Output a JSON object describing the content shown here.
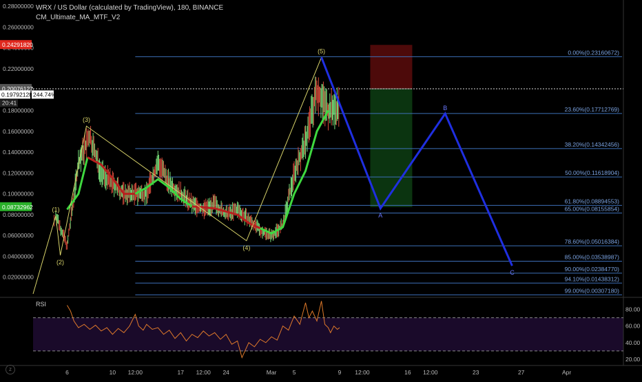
{
  "header": {
    "title": "WRX / US Dollar (calculated by TradingView), 180, BINANCE",
    "indicator": "CM_Ultimate_MA_MTF_V2"
  },
  "colors": {
    "background": "#000000",
    "fib_line": "#3d6fb8",
    "fib_label": "#7aa2e0",
    "wave_line": "#d8d36a",
    "projection": "#1f2fe0",
    "ma_green": "#3fd83f",
    "ma_red": "#b8201e",
    "candle_up": "#7ae07a",
    "candle_down": "#d24a3a",
    "rsi_line": "#e07a2a",
    "rsi_band": "#1a0a2a",
    "price_red": "#e0281e",
    "price_green": "#2ab02a",
    "sl_zone": "#5a0c0c",
    "tp_zone": "#0c3a12"
  },
  "chart_data": {
    "type": "candlestick",
    "price_axis": {
      "ylim": [
        0.002,
        0.286
      ],
      "ticks": [
        "0.28000000",
        "0.26000000",
        "0.24000000",
        "0.22000000",
        "0.20000000",
        "0.18000000",
        "0.16000000",
        "0.14000000",
        "0.12000000",
        "0.10000000",
        "0.08000000",
        "0.06000000",
        "0.04000000",
        "0.02000000"
      ],
      "tick_values": [
        0.28,
        0.26,
        0.24,
        0.22,
        0.2,
        0.18,
        0.16,
        0.14,
        0.12,
        0.1,
        0.08,
        0.06,
        0.04,
        0.02
      ],
      "badges": [
        {
          "text": "0.24291820",
          "value": 0.2429182,
          "color": "#e0281e"
        },
        {
          "text": "0.20076127",
          "value": 0.20076127,
          "color": "#555555"
        },
        {
          "text": "0.08732962",
          "value": 0.08732962,
          "color": "#2ab02a"
        }
      ],
      "crosshair": {
        "price": "0.19792128",
        "pct": "244.74%",
        "time": "20:41",
        "value": 0.19792128
      }
    },
    "time_axis": {
      "labels": [
        "6",
        "10",
        "12:00",
        "17",
        "12:00",
        "24",
        "Mar",
        "5",
        "9",
        "12:00",
        "16",
        "12:00",
        "23",
        "27",
        "Apr"
      ],
      "label_positions": [
        0,
        4,
        6,
        10,
        12,
        14,
        18,
        20,
        24,
        26,
        30,
        32,
        36,
        40,
        44
      ]
    },
    "time_range": [
      -3,
      49
    ],
    "price_path": [
      [
        -3,
        0.004
      ],
      [
        -1,
        0.08
      ],
      [
        0,
        0.05
      ],
      [
        1,
        0.13
      ],
      [
        2,
        0.155
      ],
      [
        3,
        0.12
      ],
      [
        4,
        0.11
      ],
      [
        5,
        0.1
      ],
      [
        6,
        0.1
      ],
      [
        7,
        0.1
      ],
      [
        8,
        0.13
      ],
      [
        9,
        0.11
      ],
      [
        10,
        0.1
      ],
      [
        11,
        0.09
      ],
      [
        12,
        0.085
      ],
      [
        13,
        0.09
      ],
      [
        14,
        0.08
      ],
      [
        15,
        0.085
      ],
      [
        16,
        0.075
      ],
      [
        17,
        0.065
      ],
      [
        18,
        0.06
      ],
      [
        19,
        0.07
      ],
      [
        20,
        0.12
      ],
      [
        21,
        0.15
      ],
      [
        22,
        0.2
      ],
      [
        23,
        0.18
      ],
      [
        24,
        0.185
      ]
    ],
    "ma_segments": [
      {
        "color": "#3fd83f",
        "points": [
          [
            0,
            0.085
          ],
          [
            1,
            0.1
          ],
          [
            1.8,
            0.135
          ]
        ]
      },
      {
        "color": "#b8201e",
        "points": [
          [
            1.8,
            0.135
          ],
          [
            3,
            0.128
          ],
          [
            4,
            0.115
          ],
          [
            5,
            0.1
          ],
          [
            6,
            0.1
          ]
        ]
      },
      {
        "color": "#3fd83f",
        "points": [
          [
            6,
            0.1
          ],
          [
            7,
            0.106
          ],
          [
            8,
            0.114
          ],
          [
            9,
            0.106
          ],
          [
            10,
            0.095
          ],
          [
            11,
            0.088
          ]
        ]
      },
      {
        "color": "#b8201e",
        "points": [
          [
            11,
            0.088
          ],
          [
            13,
            0.086
          ],
          [
            15,
            0.08
          ],
          [
            16,
            0.072
          ],
          [
            17,
            0.067
          ]
        ]
      },
      {
        "color": "#3fd83f",
        "points": [
          [
            17,
            0.067
          ],
          [
            18,
            0.062
          ],
          [
            19,
            0.068
          ],
          [
            20,
            0.1
          ],
          [
            21,
            0.122
          ],
          [
            22,
            0.16
          ],
          [
            23,
            0.18
          ]
        ]
      }
    ],
    "elliott_waves": [
      {
        "label": "(1)",
        "t": -1,
        "p": 0.079,
        "pos": "above"
      },
      {
        "label": "(2)",
        "t": -0.6,
        "p": 0.041,
        "pos": "below"
      },
      {
        "label": "(3)",
        "t": 1.7,
        "p": 0.165,
        "pos": "above"
      },
      {
        "label": "(4)",
        "t": 15.8,
        "p": 0.055,
        "pos": "below"
      },
      {
        "label": "(5)",
        "t": 22.4,
        "p": 0.231,
        "pos": "above"
      }
    ],
    "wave_line": [
      [
        -3,
        0.004
      ],
      [
        -1,
        0.079
      ],
      [
        -0.6,
        0.041
      ],
      [
        1.7,
        0.165
      ],
      [
        15.8,
        0.055
      ],
      [
        22.4,
        0.231
      ]
    ],
    "fib_levels": [
      {
        "label": "0.00%(0.23160672)",
        "value": 0.23160672
      },
      {
        "label": "23.60%(0.17712769)",
        "value": 0.17712769
      },
      {
        "label": "38.20%(0.14342456)",
        "value": 0.14342456
      },
      {
        "label": "50.00%(0.11618904)",
        "value": 0.11618904
      },
      {
        "label": "61.80%(0.08894553)",
        "value": 0.08894553
      },
      {
        "label": "65.00%(0.08155854)",
        "value": 0.08155854
      },
      {
        "label": "78.60%(0.05016384)",
        "value": 0.05016384
      },
      {
        "label": "85.00%(0.03538987)",
        "value": 0.03538987
      },
      {
        "label": "90.00%(0.02384770)",
        "value": 0.0238477
      },
      {
        "label": "94.10%(0.01438312)",
        "value": 0.01438312
      },
      {
        "label": "99.00%(0.00307180)",
        "value": 0.0030718
      }
    ],
    "fib_t_start": 6,
    "projection": [
      [
        22.4,
        0.231
      ],
      [
        27.6,
        0.086
      ],
      [
        33.3,
        0.177
      ],
      [
        39.2,
        0.031
      ]
    ],
    "projection_labels": [
      {
        "label": "A",
        "t": 27.6,
        "p": 0.086,
        "pos": "below"
      },
      {
        "label": "B",
        "t": 33.3,
        "p": 0.177,
        "pos": "above"
      },
      {
        "label": "C",
        "t": 39.2,
        "p": 0.031,
        "pos": "below"
      }
    ],
    "trade_box": {
      "t0": 26.7,
      "t1": 30.4,
      "stop": 0.2429182,
      "entry": 0.20076127,
      "target": 0.08732962
    },
    "rsi": {
      "label": "RSI",
      "ticks": [
        "80.00",
        "60.00",
        "40.00",
        "20.00"
      ],
      "tick_values": [
        80,
        60,
        40,
        20
      ],
      "ylim": [
        15,
        92
      ],
      "band": [
        30,
        70
      ],
      "values": [
        [
          0,
          85
        ],
        [
          0.3,
          78
        ],
        [
          0.6,
          66
        ],
        [
          1,
          58
        ],
        [
          1.5,
          62
        ],
        [
          2,
          56
        ],
        [
          2.5,
          61
        ],
        [
          3,
          54
        ],
        [
          3.5,
          58
        ],
        [
          4,
          50
        ],
        [
          4.5,
          57
        ],
        [
          5,
          52
        ],
        [
          5.5,
          60
        ],
        [
          6,
          74
        ],
        [
          6.3,
          60
        ],
        [
          6.7,
          55
        ],
        [
          7,
          62
        ],
        [
          7.5,
          56
        ],
        [
          8,
          58
        ],
        [
          8.5,
          50
        ],
        [
          9,
          55
        ],
        [
          9.5,
          45
        ],
        [
          10,
          52
        ],
        [
          10.5,
          42
        ],
        [
          11,
          50
        ],
        [
          11.5,
          46
        ],
        [
          12,
          54
        ],
        [
          12.5,
          48
        ],
        [
          13,
          52
        ],
        [
          13.5,
          44
        ],
        [
          14,
          50
        ],
        [
          14.5,
          38
        ],
        [
          15,
          42
        ],
        [
          15.4,
          22
        ],
        [
          16,
          40
        ],
        [
          16.5,
          35
        ],
        [
          17,
          44
        ],
        [
          17.5,
          40
        ],
        [
          18,
          47
        ],
        [
          18.5,
          43
        ],
        [
          19,
          60
        ],
        [
          19.5,
          55
        ],
        [
          20,
          72
        ],
        [
          20.5,
          62
        ],
        [
          21,
          88
        ],
        [
          21.3,
          70
        ],
        [
          21.6,
          78
        ],
        [
          22,
          66
        ],
        [
          22.4,
          90
        ],
        [
          22.7,
          62
        ],
        [
          23,
          58
        ],
        [
          23.2,
          52
        ],
        [
          23.5,
          60
        ],
        [
          23.8,
          56
        ],
        [
          24,
          58
        ]
      ]
    }
  }
}
